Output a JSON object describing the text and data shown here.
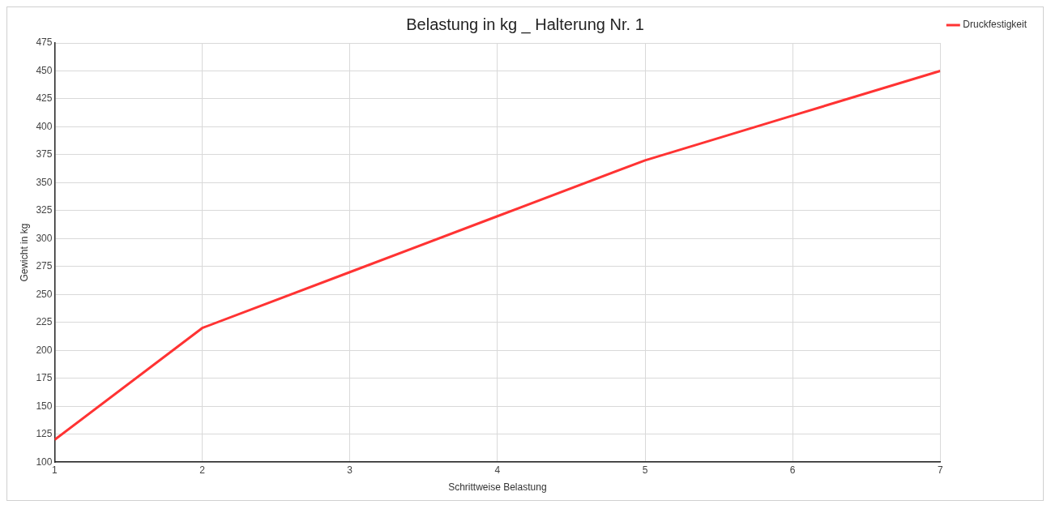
{
  "chart_data": {
    "type": "line",
    "title": "Belastung in kg _ Halterung Nr. 1",
    "xlabel": "Schrittweise Belastung",
    "ylabel": "Gewicht in kg",
    "x": [
      1,
      2,
      3,
      4,
      5,
      6,
      7
    ],
    "series": [
      {
        "name": "Druckfestigkeit",
        "color": "#ff3333",
        "values": [
          120,
          220,
          270,
          320,
          370,
          410,
          450
        ]
      }
    ],
    "xlim": [
      1,
      7
    ],
    "xticks": [
      1,
      2,
      3,
      4,
      5,
      6,
      7
    ],
    "ylim": [
      100,
      475
    ],
    "yticks": [
      100,
      125,
      150,
      175,
      200,
      225,
      250,
      275,
      300,
      325,
      350,
      375,
      400,
      425,
      450,
      475
    ],
    "grid": true,
    "legend": "top right",
    "marker": "none",
    "line_style": "solid"
  }
}
